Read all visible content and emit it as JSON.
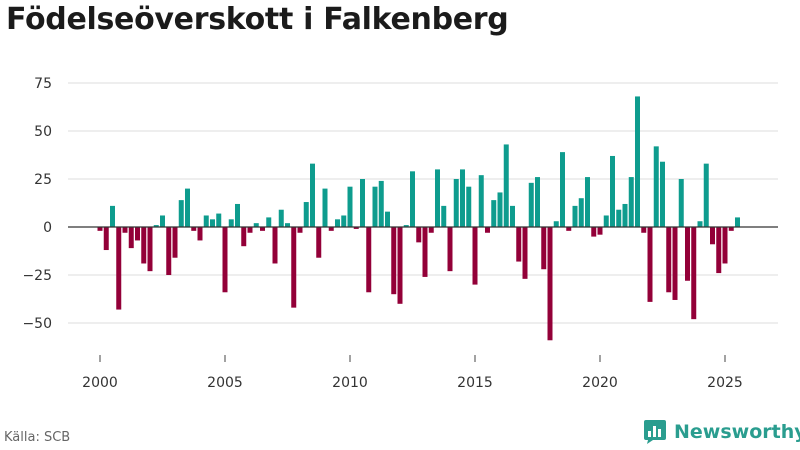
{
  "chart_data": {
    "type": "bar",
    "title": "Födelseöverskott i Falkenberg",
    "xlabel": "",
    "ylabel": "",
    "ylim": [
      -60,
      75
    ],
    "yticks": [
      75,
      50,
      25,
      0,
      -25,
      -50
    ],
    "ytick_labels": [
      "75",
      "50",
      "25",
      "0",
      "−25",
      "−50"
    ],
    "xlim": [
      2000,
      2026.8
    ],
    "xticks": [
      2000,
      2005,
      2010,
      2015,
      2020,
      2025
    ],
    "xtick_labels": [
      "2000",
      "2005",
      "2010",
      "2015",
      "2020",
      "2025"
    ],
    "start_year": 2000,
    "step": 0.25,
    "frequency": "quarterly",
    "positive_color": "#0e9c8e",
    "negative_color": "#930038",
    "values": [
      -2,
      -12,
      11,
      -43,
      -3,
      -11,
      -7,
      -19,
      -23,
      1,
      6,
      -25,
      -16,
      14,
      20,
      -2,
      -7,
      6,
      4,
      7,
      -34,
      4,
      12,
      -10,
      -3,
      2,
      -2,
      5,
      -19,
      9,
      2,
      -42,
      -3,
      13,
      33,
      -16,
      20,
      -2,
      4,
      6,
      21,
      -1,
      25,
      -34,
      21,
      24,
      8,
      -35,
      -40,
      1,
      29,
      -8,
      -26,
      -3,
      30,
      11,
      -23,
      25,
      30,
      21,
      -30,
      27,
      -3,
      14,
      18,
      43,
      11,
      -18,
      -27,
      23,
      26,
      -22,
      -59,
      3,
      39,
      -2,
      11,
      15,
      26,
      -5,
      -4,
      6,
      37,
      9,
      12,
      26,
      68,
      -3,
      -39,
      42,
      34,
      -34,
      -38,
      25,
      -28,
      -48,
      3,
      33,
      -9,
      -24,
      -19,
      -2,
      5
    ]
  },
  "source": "Källa: SCB",
  "brand": {
    "name": "Newsworthy"
  },
  "colors": {
    "teal": "#0e9c8e",
    "maroon": "#930038",
    "brand": "#2a9d8f"
  }
}
